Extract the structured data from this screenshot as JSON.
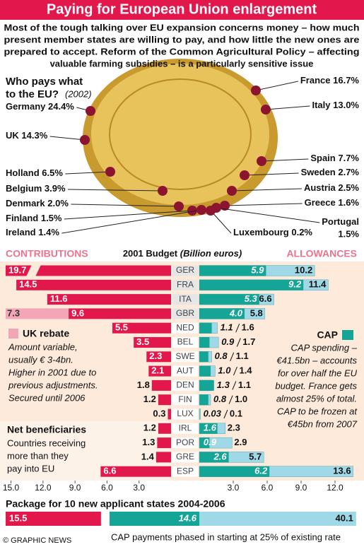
{
  "header": {
    "title": "Paying for European Union enlargement",
    "intro": [
      "Most of the tough talking over EU expansion concerns money – how much",
      "present member states are willing to pay, and how little the new ones are",
      "prepared to accept. Reform of the Common Agricultural Policy – affecting",
      "valuable farming subsidies – is a particularly sensitive issue"
    ]
  },
  "chart_data": [
    {
      "type": "shares",
      "title": [
        "Who pays what",
        "to the EU?"
      ],
      "subtitle": "(2002)",
      "categories": [
        "France",
        "Italy",
        "Germany",
        "UK",
        "Spain",
        "Sweden",
        "Holland",
        "Austria",
        "Belgium",
        "Greece",
        "Denmark",
        "Portugal",
        "Finland",
        "Ireland",
        "Luxembourg"
      ],
      "values": [
        16.7,
        13.0,
        24.4,
        14.3,
        7.7,
        2.7,
        6.5,
        2.5,
        3.9,
        1.6,
        2.0,
        1.5,
        1.5,
        1.4,
        0.2
      ],
      "value_labels": [
        "16.7%",
        "13.0%",
        "24.4%",
        "14.3%",
        "7.7%",
        "2.7%",
        "6.5%",
        "2.5%",
        "3.9%",
        "1.6%",
        "2.0%",
        "1.5%",
        "1.5%",
        "1.4%",
        "0.2%"
      ],
      "color": "#8c1430"
    },
    {
      "type": "butterfly",
      "title": "2001 Budget",
      "subtitle": "(Billion euros)",
      "categories": [
        "GER",
        "FRA",
        "ITA",
        "GBR",
        "NED",
        "BEL",
        "SWE",
        "AUT",
        "DEN",
        "FIN",
        "LUX",
        "IRL",
        "POR",
        "GRE",
        "ESP"
      ],
      "series": [
        {
          "name": "CONTRIBUTIONS",
          "color": "#e2184c",
          "values": [
            19.7,
            14.5,
            11.6,
            9.6,
            5.5,
            3.5,
            2.3,
            2.1,
            1.8,
            1.2,
            0.3,
            1.2,
            1.3,
            1.4,
            6.6
          ]
        },
        {
          "name": "UK rebate",
          "color": "#f3a6b6",
          "values": [
            null,
            null,
            null,
            7.3,
            null,
            null,
            null,
            null,
            null,
            null,
            null,
            null,
            null,
            null,
            null
          ]
        },
        {
          "name": "CAP",
          "color": "#14a597",
          "values": [
            5.9,
            9.2,
            5.3,
            4.0,
            1.1,
            0.9,
            0.8,
            1.0,
            1.3,
            0.8,
            0.03,
            1.6,
            0.9,
            2.6,
            6.2
          ],
          "value_labels": [
            "5.9",
            "9.2",
            "5.3",
            "4.0",
            "1.1",
            "0.9",
            "0.8",
            "1.0",
            "1.3",
            "0.8",
            "0.03",
            "1.6",
            "0.9",
            "2.6",
            "6.2"
          ]
        },
        {
          "name": "ALLOWANCES",
          "color": "#9fd8e6",
          "values": [
            10.2,
            11.4,
            6.6,
            5.8,
            1.6,
            1.7,
            1.1,
            1.4,
            1.1,
            1.0,
            0.1,
            2.3,
            2.9,
            5.7,
            13.6
          ],
          "value_labels": [
            "10.2",
            "11.4",
            "6.6",
            "5.8",
            "1.6",
            "1.7",
            "1.1",
            "1.4",
            "1.1",
            "1.0",
            "0.1",
            "2.3",
            "2.9",
            "5.7",
            "13.6"
          ]
        }
      ],
      "xlim_left": [
        0,
        15.5
      ],
      "xticks_left": [
        {
          "value": 15,
          "label": "15.0"
        },
        {
          "value": 12,
          "label": "12.0"
        },
        {
          "value": 9,
          "label": "9.0"
        },
        {
          "value": 6,
          "label": "6.0"
        },
        {
          "value": 3,
          "label": "3.0"
        }
      ],
      "xlim_right": [
        0,
        14
      ],
      "xticks_right": [
        {
          "value": 3,
          "label": "3.0"
        },
        {
          "value": 6,
          "label": "6.0"
        },
        {
          "value": 9,
          "label": "9.0"
        },
        {
          "value": 12,
          "label": "12.0"
        }
      ],
      "rebate_note": [
        "Amount variable,",
        "usually € 3-4bn.",
        "Higher in 2001 due to",
        "previous adjustments.",
        "Secured until 2006"
      ],
      "net_title": "Net beneficiaries",
      "net_note": [
        "Countries receiving",
        "more than they",
        "pay into EU"
      ],
      "cap_note": [
        "CAP spending –",
        "€41.5bn – accounts",
        "for over half the EU",
        "budget. France gets",
        "almost 25% of total.",
        "CAP to be frozen at",
        "€45bn from 2007"
      ]
    },
    {
      "type": "package",
      "title": "Package for 10 new applicant states 2004-2006",
      "contribution": 15.5,
      "cap": 14.6,
      "allowances": 40.1,
      "note": "CAP payments phased in starting at 25% of existing rate"
    }
  ],
  "footer": "© GRAPHIC NEWS"
}
